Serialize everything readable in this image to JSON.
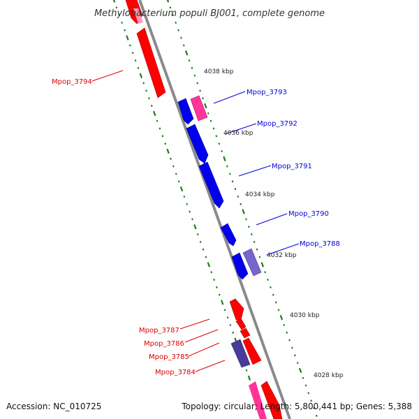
{
  "title": "Methylobacterium populi BJ001, complete genome",
  "footer": {
    "accession": "Accession: NC_010725",
    "summary": "Topology: circular; Length: 5,800,441 bp; Genes: 5,388"
  },
  "colors": {
    "backbone": "#8a8a8a",
    "tick": "#1e7a1e",
    "forward_gene": "#ff0000",
    "reverse_gene": "#0000ee",
    "pink_gene": "#ff3399",
    "violet_gene": "#7766cc",
    "dark_violet_gene": "#4a3a99"
  },
  "scale_labels": [
    "4038 kbp",
    "4036 kbp",
    "4034 kbp",
    "4032 kbp",
    "4030 kbp",
    "4028 kbp"
  ],
  "forward_labels": [
    "Mpop_3794",
    "Mpop_3787",
    "Mpop_3786",
    "Mpop_3785",
    "Mpop_3784"
  ],
  "reverse_labels": [
    "Mpop_3793",
    "Mpop_3792",
    "Mpop_3791",
    "Mpop_3790",
    "Mpop_3788"
  ]
}
